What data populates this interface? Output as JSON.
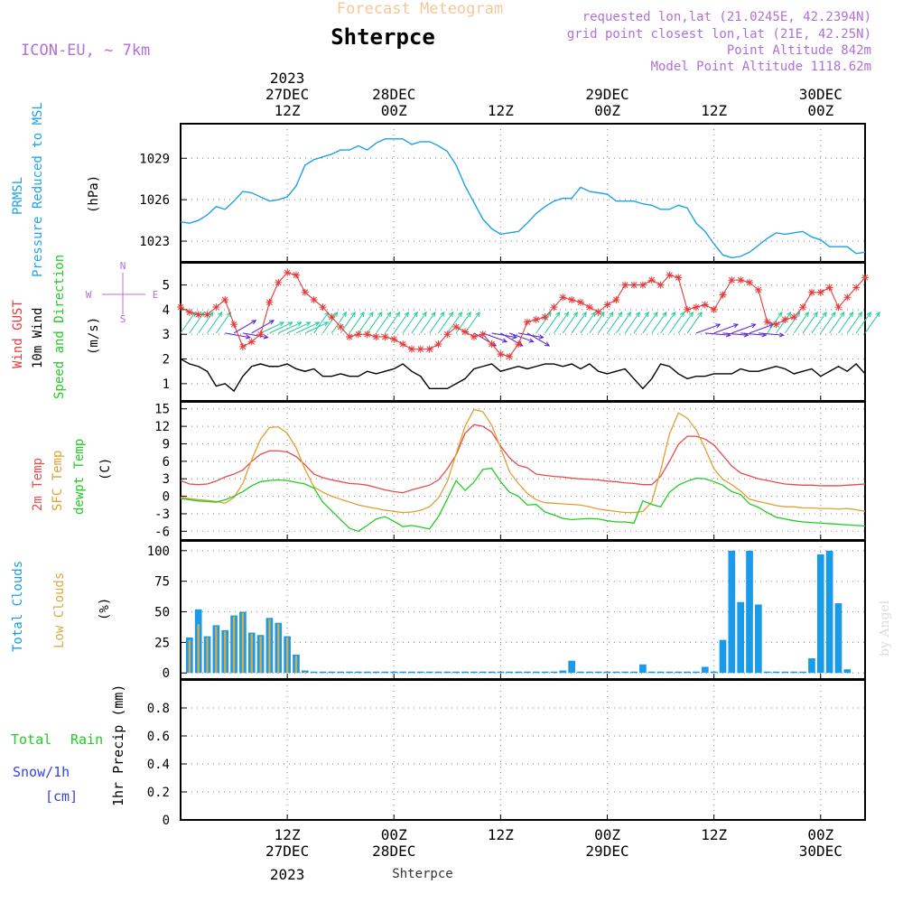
{
  "header": {
    "subtitle": "Forecast Meteogram",
    "location": "Shterpce",
    "model": "ICON-EU, ~ 7km",
    "requested": "requested lon,lat (21.0245E, 42.2394N)",
    "gridpoint": "grid point closest lon,lat (21E, 42.25N)",
    "point_altitude": "Point Altitude 842m",
    "model_altitude": "Model Point Altitude 1118.62m",
    "credit": "by Angel",
    "bottom_label": "Shterpce"
  },
  "time_axis": {
    "top_year": "2023",
    "ticks": [
      {
        "top_date": "27DEC",
        "time": "12Z",
        "bottom_date": "27DEC",
        "hour": 12
      },
      {
        "top_date": "28DEC",
        "time": "00Z",
        "bottom_date": "28DEC",
        "hour": 24
      },
      {
        "top_date": "",
        "time": "12Z",
        "bottom_date": "",
        "hour": 36
      },
      {
        "top_date": "29DEC",
        "time": "00Z",
        "bottom_date": "29DEC",
        "hour": 48
      },
      {
        "top_date": "",
        "time": "12Z",
        "bottom_date": "",
        "hour": 60
      },
      {
        "top_date": "30DEC",
        "time": "00Z",
        "bottom_date": "30DEC",
        "hour": 72
      }
    ],
    "bottom_year": "2023",
    "range_hours": [
      0,
      77
    ]
  },
  "panels": {
    "pressure": {
      "label1": "PRMSL",
      "label2": "Pressure Reduced to MSL",
      "unit": "(hPa)"
    },
    "wind": {
      "gust_label": "Wind GUST",
      "wind_label": "10m Wind",
      "dir_label": "Speed and Direction",
      "unit": "(m/s)",
      "compass": {
        "n": "N",
        "s": "S",
        "w": "W",
        "e": "E"
      }
    },
    "temp": {
      "t2m": "2m Temp",
      "sfc": "SFC Temp",
      "dew": "dewpt Temp",
      "unit": "(C)"
    },
    "clouds": {
      "total": "Total Clouds",
      "low": "Low Clouds",
      "unit": "(%)"
    },
    "precip": {
      "total": "Total",
      "rain": "Rain",
      "snow": "Snow/1h",
      "snow_unit": "[cm]",
      "label": "1hr Precip (mm)"
    }
  },
  "colors": {
    "pressure": "#1da1e8",
    "gust": "#e63a3a",
    "wind": "#000000",
    "arrow": "#22cc99",
    "arrow_alt": "#5522cc",
    "t2m": "#e64b4b",
    "sfc": "#e0a030",
    "dew": "#22cc22",
    "cloud_total": "#1a9be8",
    "cloud_low": "#e0a840",
    "title_orange": "#f3c896",
    "purple": "#b070d8",
    "rain": "#22cc22",
    "snow": "#3344dd"
  },
  "chart_data": [
    {
      "type": "line",
      "title": "PRMSL Pressure Reduced to MSL",
      "ylabel": "(hPa)",
      "ylim": [
        1021.5,
        1031.5
      ],
      "yticks": [
        1023,
        1026,
        1029
      ],
      "x": [
        0,
        1,
        2,
        3,
        4,
        5,
        6,
        7,
        8,
        9,
        10,
        11,
        12,
        13,
        14,
        15,
        16,
        17,
        18,
        19,
        20,
        21,
        22,
        23,
        24,
        25,
        26,
        27,
        28,
        29,
        30,
        31,
        32,
        33,
        34,
        35,
        36,
        37,
        38,
        39,
        40,
        41,
        42,
        43,
        44,
        45,
        46,
        47,
        48,
        49,
        50,
        51,
        52,
        53,
        54,
        55,
        56,
        57,
        58,
        59,
        60,
        61,
        62,
        63,
        64,
        65,
        66,
        67,
        68,
        69,
        70,
        71,
        72,
        73,
        74,
        75,
        76,
        77
      ],
      "series": [
        {
          "name": "PRMSL",
          "values": [
            1024.4,
            1024.3,
            1024.5,
            1024.9,
            1025.5,
            1025.3,
            1025.9,
            1026.6,
            1026.5,
            1026.2,
            1025.9,
            1026.0,
            1026.2,
            1027.0,
            1028.5,
            1028.9,
            1029.1,
            1029.3,
            1029.6,
            1029.6,
            1029.9,
            1029.6,
            1030.1,
            1030.4,
            1030.4,
            1030.4,
            1030.0,
            1030.2,
            1030.2,
            1029.9,
            1029.5,
            1028.5,
            1027.0,
            1025.8,
            1024.6,
            1023.9,
            1023.5,
            1023.6,
            1023.7,
            1024.3,
            1025.0,
            1025.5,
            1025.9,
            1026.1,
            1026.1,
            1026.9,
            1026.6,
            1026.5,
            1026.4,
            1025.9,
            1025.9,
            1025.9,
            1025.7,
            1025.6,
            1025.3,
            1025.3,
            1025.6,
            1025.4,
            1024.3,
            1023.7,
            1022.8,
            1022.0,
            1021.8,
            1021.9,
            1022.2,
            1022.7,
            1023.2,
            1023.6,
            1023.5,
            1023.6,
            1023.7,
            1023.3,
            1023.1,
            1022.6,
            1022.6,
            1022.6,
            1022.1,
            1022.2
          ]
        }
      ]
    },
    {
      "type": "line",
      "title": "Wind GUST / 10m Wind Speed and Direction",
      "ylabel": "(m/s)",
      "ylim": [
        0.3,
        5.9
      ],
      "yticks": [
        1,
        2,
        3,
        4,
        5
      ],
      "x": [
        0,
        1,
        2,
        3,
        4,
        5,
        6,
        7,
        8,
        9,
        10,
        11,
        12,
        13,
        14,
        15,
        16,
        17,
        18,
        19,
        20,
        21,
        22,
        23,
        24,
        25,
        26,
        27,
        28,
        29,
        30,
        31,
        32,
        33,
        34,
        35,
        36,
        37,
        38,
        39,
        40,
        41,
        42,
        43,
        44,
        45,
        46,
        47,
        48,
        49,
        50,
        51,
        52,
        53,
        54,
        55,
        56,
        57,
        58,
        59,
        60,
        61,
        62,
        63,
        64,
        65,
        66,
        67,
        68,
        69,
        70,
        71,
        72,
        73,
        74,
        75,
        76,
        77
      ],
      "series": [
        {
          "name": "Wind GUST",
          "values": [
            4.1,
            3.9,
            3.8,
            3.8,
            4.1,
            4.4,
            3.4,
            2.5,
            2.7,
            3.0,
            4.3,
            5.1,
            5.5,
            5.4,
            4.7,
            4.4,
            4.1,
            3.7,
            3.3,
            2.9,
            3.0,
            3.0,
            2.9,
            2.9,
            2.8,
            2.6,
            2.4,
            2.4,
            2.4,
            2.6,
            3.0,
            3.3,
            3.1,
            2.9,
            3.0,
            2.6,
            2.2,
            2.1,
            2.6,
            3.5,
            3.6,
            3.7,
            4.1,
            4.5,
            4.4,
            4.3,
            4.1,
            3.9,
            4.2,
            4.4,
            5.0,
            5.0,
            5.0,
            5.2,
            5.0,
            5.4,
            5.3,
            4.0,
            4.1,
            4.2,
            4.0,
            4.6,
            5.2,
            5.2,
            5.1,
            4.8,
            3.5,
            3.4,
            3.6,
            3.7,
            4.1,
            4.7,
            4.7,
            4.9,
            4.1,
            4.5,
            4.9,
            5.3
          ]
        },
        {
          "name": "10m Wind",
          "values": [
            2.0,
            1.8,
            1.7,
            1.5,
            0.9,
            1.0,
            0.7,
            1.3,
            1.7,
            1.8,
            1.7,
            1.7,
            1.8,
            1.6,
            1.5,
            1.6,
            1.3,
            1.3,
            1.4,
            1.3,
            1.3,
            1.5,
            1.4,
            1.5,
            1.6,
            1.8,
            1.5,
            1.3,
            0.8,
            0.8,
            0.8,
            1.0,
            1.2,
            1.6,
            1.7,
            1.8,
            1.5,
            1.6,
            1.7,
            1.6,
            1.7,
            1.8,
            1.8,
            1.7,
            1.8,
            1.6,
            1.8,
            1.5,
            1.4,
            1.5,
            1.6,
            1.2,
            0.8,
            1.2,
            1.8,
            1.7,
            1.4,
            1.2,
            1.3,
            1.3,
            1.4,
            1.4,
            1.4,
            1.6,
            1.5,
            1.5,
            1.6,
            1.7,
            1.6,
            1.4,
            1.5,
            1.6,
            1.3,
            1.5,
            1.7,
            1.5,
            1.8,
            1.4
          ]
        }
      ]
    },
    {
      "type": "line",
      "title": "2m Temp / SFC Temp / dewpt Temp",
      "ylabel": "(C)",
      "ylim": [
        -7.5,
        16.2
      ],
      "yticks": [
        -6,
        -3,
        0,
        3,
        6,
        9,
        12,
        15
      ],
      "x": [
        0,
        1,
        2,
        3,
        4,
        5,
        6,
        7,
        8,
        9,
        10,
        11,
        12,
        13,
        14,
        15,
        16,
        17,
        18,
        19,
        20,
        21,
        22,
        23,
        24,
        25,
        26,
        27,
        28,
        29,
        30,
        31,
        32,
        33,
        34,
        35,
        36,
        37,
        38,
        39,
        40,
        41,
        42,
        43,
        44,
        45,
        46,
        47,
        48,
        49,
        50,
        51,
        52,
        53,
        54,
        55,
        56,
        57,
        58,
        59,
        60,
        61,
        62,
        63,
        64,
        65,
        66,
        67,
        68,
        69,
        70,
        71,
        72,
        73,
        74,
        75,
        76,
        77
      ],
      "series": [
        {
          "name": "2m Temp",
          "values": [
            2.7,
            2.1,
            2.0,
            2.1,
            2.6,
            3.3,
            3.8,
            4.5,
            6.0,
            7.2,
            7.8,
            7.8,
            7.6,
            6.8,
            5.4,
            3.8,
            3.2,
            2.8,
            2.5,
            2.2,
            2.1,
            1.9,
            1.5,
            1.1,
            0.8,
            0.6,
            1.1,
            1.5,
            1.9,
            2.8,
            4.7,
            7.1,
            10.8,
            12.3,
            12.0,
            11.0,
            8.6,
            6.6,
            5.3,
            4.9,
            3.8,
            3.6,
            3.4,
            3.3,
            3.1,
            3.0,
            2.9,
            2.8,
            2.6,
            2.5,
            2.3,
            2.2,
            2.0,
            2.0,
            3.4,
            6.0,
            8.9,
            10.3,
            10.3,
            9.8,
            8.8,
            7.0,
            5.2,
            4.0,
            3.5,
            3.0,
            2.7,
            2.4,
            2.1,
            2.0,
            1.9,
            1.9,
            1.8,
            1.8,
            1.8,
            1.9,
            2.0,
            2.1
          ]
        },
        {
          "name": "SFC Temp",
          "values": [
            -0.2,
            -0.4,
            -0.6,
            -0.7,
            -0.9,
            -1.2,
            -0.2,
            2.2,
            6.3,
            9.8,
            11.8,
            11.9,
            10.8,
            8.3,
            4.6,
            1.6,
            0.7,
            0.0,
            -0.5,
            -1.0,
            -1.5,
            -1.8,
            -2.1,
            -2.4,
            -2.6,
            -2.8,
            -2.7,
            -2.4,
            -1.8,
            -0.3,
            2.5,
            7.3,
            12.0,
            14.9,
            14.5,
            12.2,
            8.3,
            4.2,
            2.2,
            0.5,
            -0.6,
            -1.1,
            -1.2,
            -1.3,
            -1.4,
            -1.5,
            -1.8,
            -2.2,
            -2.4,
            -2.6,
            -2.8,
            -2.8,
            -2.6,
            -1.0,
            4.4,
            10.7,
            14.3,
            13.4,
            11.4,
            8.2,
            4.7,
            2.9,
            2.0,
            0.9,
            -0.5,
            -0.9,
            -1.2,
            -1.6,
            -1.8,
            -1.8,
            -2.0,
            -2.0,
            -2.1,
            -2.1,
            -2.2,
            -2.1,
            -2.3,
            -2.6
          ]
        },
        {
          "name": "dewpt Temp",
          "values": [
            -0.4,
            -0.6,
            -0.8,
            -0.9,
            -1.0,
            -0.6,
            0.0,
            0.8,
            1.8,
            2.5,
            2.7,
            2.8,
            2.7,
            2.4,
            2.1,
            1.4,
            -1.0,
            -2.5,
            -4.0,
            -5.5,
            -6.0,
            -5.0,
            -3.9,
            -3.5,
            -4.3,
            -5.2,
            -5.0,
            -5.3,
            -5.6,
            -3.5,
            -0.5,
            2.7,
            1.0,
            2.4,
            4.6,
            4.8,
            2.5,
            0.7,
            0.0,
            -1.5,
            -1.4,
            -2.7,
            -3.2,
            -3.8,
            -4.0,
            -3.9,
            -3.8,
            -3.9,
            -4.2,
            -4.4,
            -4.4,
            -4.6,
            -0.8,
            -1.4,
            -1.8,
            0.7,
            1.9,
            2.6,
            3.1,
            3.0,
            2.5,
            1.9,
            0.8,
            0.3,
            -1.3,
            -1.9,
            -2.8,
            -3.6,
            -3.9,
            -4.2,
            -4.4,
            -4.5,
            -4.6,
            -4.7,
            -4.8,
            -4.9,
            -5.0,
            -5.1
          ]
        }
      ]
    },
    {
      "type": "bar",
      "title": "Total Clouds / Low Clouds",
      "ylabel": "(%)",
      "ylim": [
        -5,
        108
      ],
      "yticks": [
        0,
        25,
        50,
        75,
        100
      ],
      "x": [
        1,
        2,
        3,
        4,
        5,
        6,
        7,
        8,
        9,
        10,
        11,
        12,
        13,
        14,
        15,
        16,
        17,
        18,
        19,
        20,
        21,
        22,
        23,
        24,
        25,
        26,
        27,
        28,
        29,
        30,
        31,
        32,
        33,
        34,
        35,
        36,
        37,
        38,
        39,
        40,
        41,
        42,
        43,
        44,
        45,
        46,
        47,
        48,
        49,
        50,
        51,
        52,
        53,
        54,
        55,
        56,
        57,
        58,
        59,
        60,
        61,
        62,
        63,
        64,
        65,
        66,
        67,
        68,
        69,
        70,
        71,
        72,
        73,
        74,
        75
      ],
      "series": [
        {
          "name": "Total Clouds",
          "values": [
            29,
            52,
            30,
            39,
            35,
            47,
            50,
            33,
            31,
            45,
            41,
            30,
            15,
            2,
            0,
            0,
            0,
            0,
            0,
            0,
            0,
            0,
            0,
            0,
            0,
            0,
            0,
            0,
            0,
            0,
            0,
            0,
            0,
            0,
            0,
            0,
            0,
            0,
            0,
            0,
            0,
            0,
            2,
            10,
            0,
            0,
            0,
            0,
            1,
            0,
            0,
            7,
            0,
            0,
            0,
            0,
            0,
            0,
            5,
            0,
            27,
            100,
            58,
            100,
            56,
            0,
            0,
            0,
            0,
            0,
            12,
            97,
            100,
            57,
            3
          ]
        },
        {
          "name": "Low Clouds",
          "values": [
            27,
            40,
            29,
            38,
            34,
            46,
            49,
            32,
            30,
            44,
            40,
            29,
            14,
            1,
            0,
            0,
            0,
            0,
            0,
            0,
            0,
            0,
            0,
            0,
            0,
            0,
            0,
            0,
            0,
            0,
            0,
            0,
            0,
            0,
            0,
            0,
            0,
            0,
            0,
            0,
            0,
            0,
            0,
            0,
            0,
            0,
            0,
            0,
            0,
            0,
            0,
            0,
            0,
            0,
            0,
            0,
            0,
            0,
            0,
            0,
            0,
            0,
            0,
            0,
            0,
            0,
            0,
            0,
            0,
            0,
            0,
            0,
            0,
            0,
            0
          ]
        }
      ]
    },
    {
      "type": "bar",
      "title": "1hr Precip (mm)",
      "ylabel": "1hr Precip (mm)",
      "ylim": [
        0,
        1.0
      ],
      "yticks": [
        0,
        0.2,
        0.4,
        0.6,
        0.8
      ],
      "x": [],
      "series": [
        {
          "name": "Total Rain",
          "values": []
        },
        {
          "name": "Snow/1h",
          "values": []
        }
      ]
    }
  ]
}
